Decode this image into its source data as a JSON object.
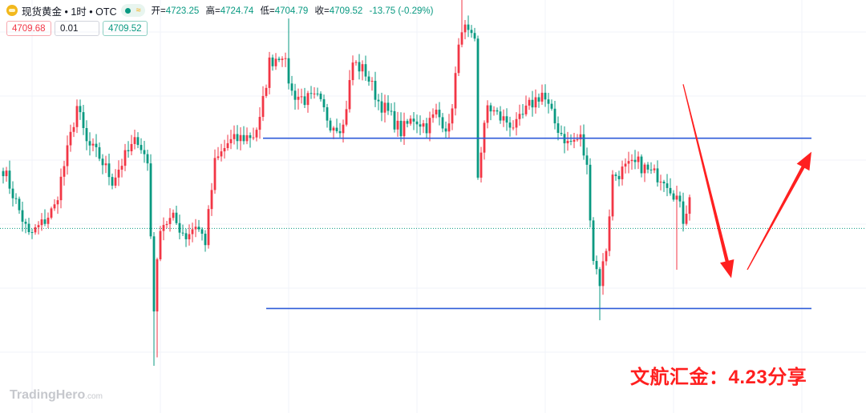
{
  "header": {
    "symbol": "现货黄金 • 1时 • OTC",
    "wave_icon": "≈",
    "open_label": "开=",
    "open_value": "4723.25",
    "high_label": "高=",
    "high_value": "4724.74",
    "low_label": "低=",
    "low_value": "4704.79",
    "close_label": "收=",
    "close_value": "4709.52",
    "change": "-13.75 (-0.29%)"
  },
  "trade": {
    "sell": "4709.68",
    "spread": "0.01",
    "buy": "4709.52"
  },
  "watermark": {
    "brand": "TradingHero",
    "suffix": ".com"
  },
  "annotation": "文航汇金：4.23分享",
  "colors": {
    "up": "#f23645",
    "down": "#089981",
    "level_line": "#2e5bd8",
    "arrow": "#ff2020"
  },
  "chart_data": {
    "type": "candlestick",
    "timeframe": "1h",
    "y_range": [
      4600,
      4845
    ],
    "current_price": 4709.52,
    "levels": [
      {
        "price": 4763.0,
        "from_index": 81,
        "to_index": 252
      },
      {
        "price": 4662.0,
        "from_index": 82,
        "to_index": 252
      }
    ],
    "arrows": [
      {
        "from": [
          212,
          4795
        ],
        "to": [
          227,
          4680
        ],
        "direction": "down"
      },
      {
        "from": [
          232,
          4685
        ],
        "to": [
          252,
          4755
        ],
        "direction": "up"
      }
    ],
    "grid": true,
    "anchors": [
      [
        0,
        4745
      ],
      [
        4,
        4725
      ],
      [
        8,
        4705
      ],
      [
        12,
        4712
      ],
      [
        16,
        4722
      ],
      [
        20,
        4755
      ],
      [
        23,
        4782
      ],
      [
        26,
        4760
      ],
      [
        30,
        4752
      ],
      [
        34,
        4738
      ],
      [
        38,
        4752
      ],
      [
        42,
        4763
      ],
      [
        45,
        4748
      ],
      [
        47,
        4663
      ],
      [
        49,
        4712
      ],
      [
        53,
        4715
      ],
      [
        57,
        4705
      ],
      [
        60,
        4712
      ],
      [
        63,
        4702
      ],
      [
        66,
        4748
      ],
      [
        70,
        4760
      ],
      [
        74,
        4763
      ],
      [
        78,
        4765
      ],
      [
        80,
        4773
      ],
      [
        83,
        4808
      ],
      [
        87,
        4814
      ],
      [
        90,
        4790
      ],
      [
        94,
        4786
      ],
      [
        98,
        4786
      ],
      [
        102,
        4772
      ],
      [
        106,
        4770
      ],
      [
        109,
        4808
      ],
      [
        113,
        4802
      ],
      [
        117,
        4785
      ],
      [
        120,
        4778
      ],
      [
        124,
        4767
      ],
      [
        128,
        4775
      ],
      [
        132,
        4770
      ],
      [
        135,
        4778
      ],
      [
        139,
        4768
      ],
      [
        141,
        4800
      ],
      [
        143,
        4830
      ],
      [
        147,
        4818
      ],
      [
        150,
        4794
      ],
      [
        153,
        4790
      ],
      [
        148,
        4742
      ],
      [
        151,
        4782
      ],
      [
        155,
        4775
      ],
      [
        160,
        4770
      ],
      [
        164,
        4782
      ],
      [
        168,
        4790
      ],
      [
        172,
        4772
      ],
      [
        176,
        4760
      ],
      [
        180,
        4763
      ],
      [
        182,
        4745
      ],
      [
        184,
        4692
      ],
      [
        186,
        4678
      ],
      [
        188,
        4698
      ],
      [
        190,
        4740
      ],
      [
        194,
        4745
      ],
      [
        198,
        4748
      ],
      [
        202,
        4742
      ],
      [
        206,
        4740
      ],
      [
        210,
        4728
      ],
      [
        212,
        4715
      ],
      [
        214,
        4728
      ]
    ],
    "wicks": [
      {
        "index": 47,
        "low": 4628
      },
      {
        "index": 48,
        "low": 4633
      },
      {
        "index": 186,
        "low": 4655
      },
      {
        "index": 210,
        "low": 4685
      },
      {
        "index": 143,
        "high": 4845
      },
      {
        "index": 89,
        "high": 4834
      },
      {
        "index": 23,
        "high": 4786
      }
    ]
  }
}
